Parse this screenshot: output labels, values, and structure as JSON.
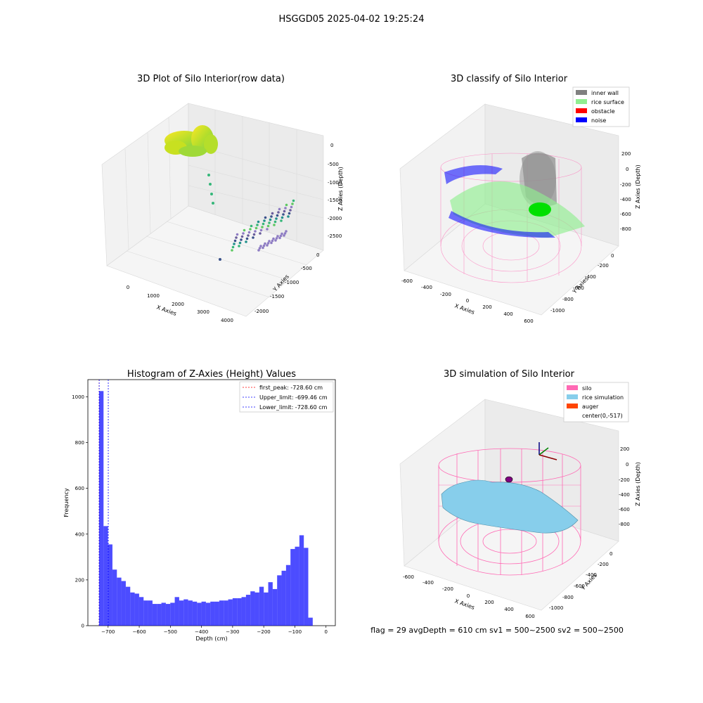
{
  "suptitle": "HSGGD05 2025-04-02 19:25:24",
  "status_line": "flag = 29  avgDepth = 610 cm  sv1 = 500~2500  sv2 = 500~2500",
  "chart_data": [
    {
      "type": "scatter",
      "dimensions": "3d",
      "title": "3D Plot of Silo Interior(row data)",
      "xlabel": "X Axies",
      "ylabel": "Y Axies",
      "zlabel": "Z Axies (Depth)",
      "xticks": [
        "0",
        "1000",
        "2000",
        "3000",
        "4000"
      ],
      "yticks": [
        "0",
        "-500",
        "-1000",
        "-1500",
        "-2000"
      ],
      "zticks": [
        "0",
        "-500",
        "-1000",
        "-1500",
        "-2000",
        "-2500"
      ],
      "colormap": "viridis",
      "grid": true
    },
    {
      "type": "scatter",
      "dimensions": "3d",
      "title": "3D classify of Silo Interior",
      "xlabel": "X Axies",
      "ylabel": "Y Axies",
      "zlabel": "Z Axies (Depth)",
      "xticks": [
        "-600",
        "-400",
        "-200",
        "0",
        "200",
        "400",
        "600"
      ],
      "yticks": [
        "0",
        "-200",
        "-400",
        "-600",
        "-800",
        "-1000"
      ],
      "zticks": [
        "200",
        "0",
        "-200",
        "-400",
        "-600",
        "-800"
      ],
      "legend_position": "top-right",
      "legend": [
        {
          "label": "inner wall",
          "color": "#808080"
        },
        {
          "label": "rice surface",
          "color": "#90ee90"
        },
        {
          "label": "obstacle",
          "color": "#ff0000"
        },
        {
          "label": "noise",
          "color": "#0000ff"
        }
      ],
      "grid": true
    },
    {
      "type": "bar",
      "title": "Histogram of Z-Axies (Height) Values",
      "xlabel": "Depth (cm)",
      "ylabel": "Frequency",
      "xlim": [
        -765,
        30
      ],
      "ylim": [
        0,
        1075
      ],
      "xticks": [
        -700,
        -600,
        -500,
        -400,
        -300,
        -200,
        -100,
        0
      ],
      "yticks": [
        0,
        200,
        400,
        600,
        800,
        1000
      ],
      "bin_start": -729,
      "bin_width": 14.3,
      "values": [
        1025,
        435,
        355,
        245,
        210,
        195,
        170,
        145,
        140,
        125,
        110,
        110,
        95,
        95,
        100,
        95,
        100,
        125,
        110,
        115,
        110,
        105,
        100,
        105,
        100,
        105,
        105,
        110,
        110,
        115,
        120,
        120,
        125,
        135,
        150,
        145,
        170,
        145,
        190,
        160,
        220,
        240,
        265,
        335,
        345,
        395,
        340,
        35
      ],
      "bar_color": "#0000ff",
      "vlines": [
        {
          "label": "first_peak: -728.60 cm",
          "x": -728.6,
          "color": "#ff0000"
        },
        {
          "label": "Upper_limit: -699.46 cm",
          "x": -699.46,
          "color": "#0000ff"
        },
        {
          "label": "Lower_limit: -728.60 cm",
          "x": -728.6,
          "color": "#0000ff"
        }
      ],
      "legend_position": "top-right"
    },
    {
      "type": "surface",
      "dimensions": "3d",
      "title": "3D simulation of Silo Interior",
      "xlabel": "X Axies",
      "ylabel": "Y Axies",
      "zlabel": "Z Axies (Depth)",
      "xticks": [
        "-600",
        "-400",
        "-200",
        "0",
        "200",
        "400",
        "600"
      ],
      "yticks": [
        "0",
        "-200",
        "-400",
        "-600",
        "-800",
        "-1000"
      ],
      "zticks": [
        "200",
        "0",
        "-200",
        "-400",
        "-600",
        "-800"
      ],
      "legend_position": "top-right",
      "legend": [
        {
          "label": "silo",
          "color": "#ff69b4"
        },
        {
          "label": "rice simulation",
          "color": "#87ceeb"
        },
        {
          "label": "auger",
          "color": "#ff4500"
        },
        {
          "label": "center(0,-517)",
          "color": "#ffffff"
        }
      ],
      "grid": true
    }
  ]
}
